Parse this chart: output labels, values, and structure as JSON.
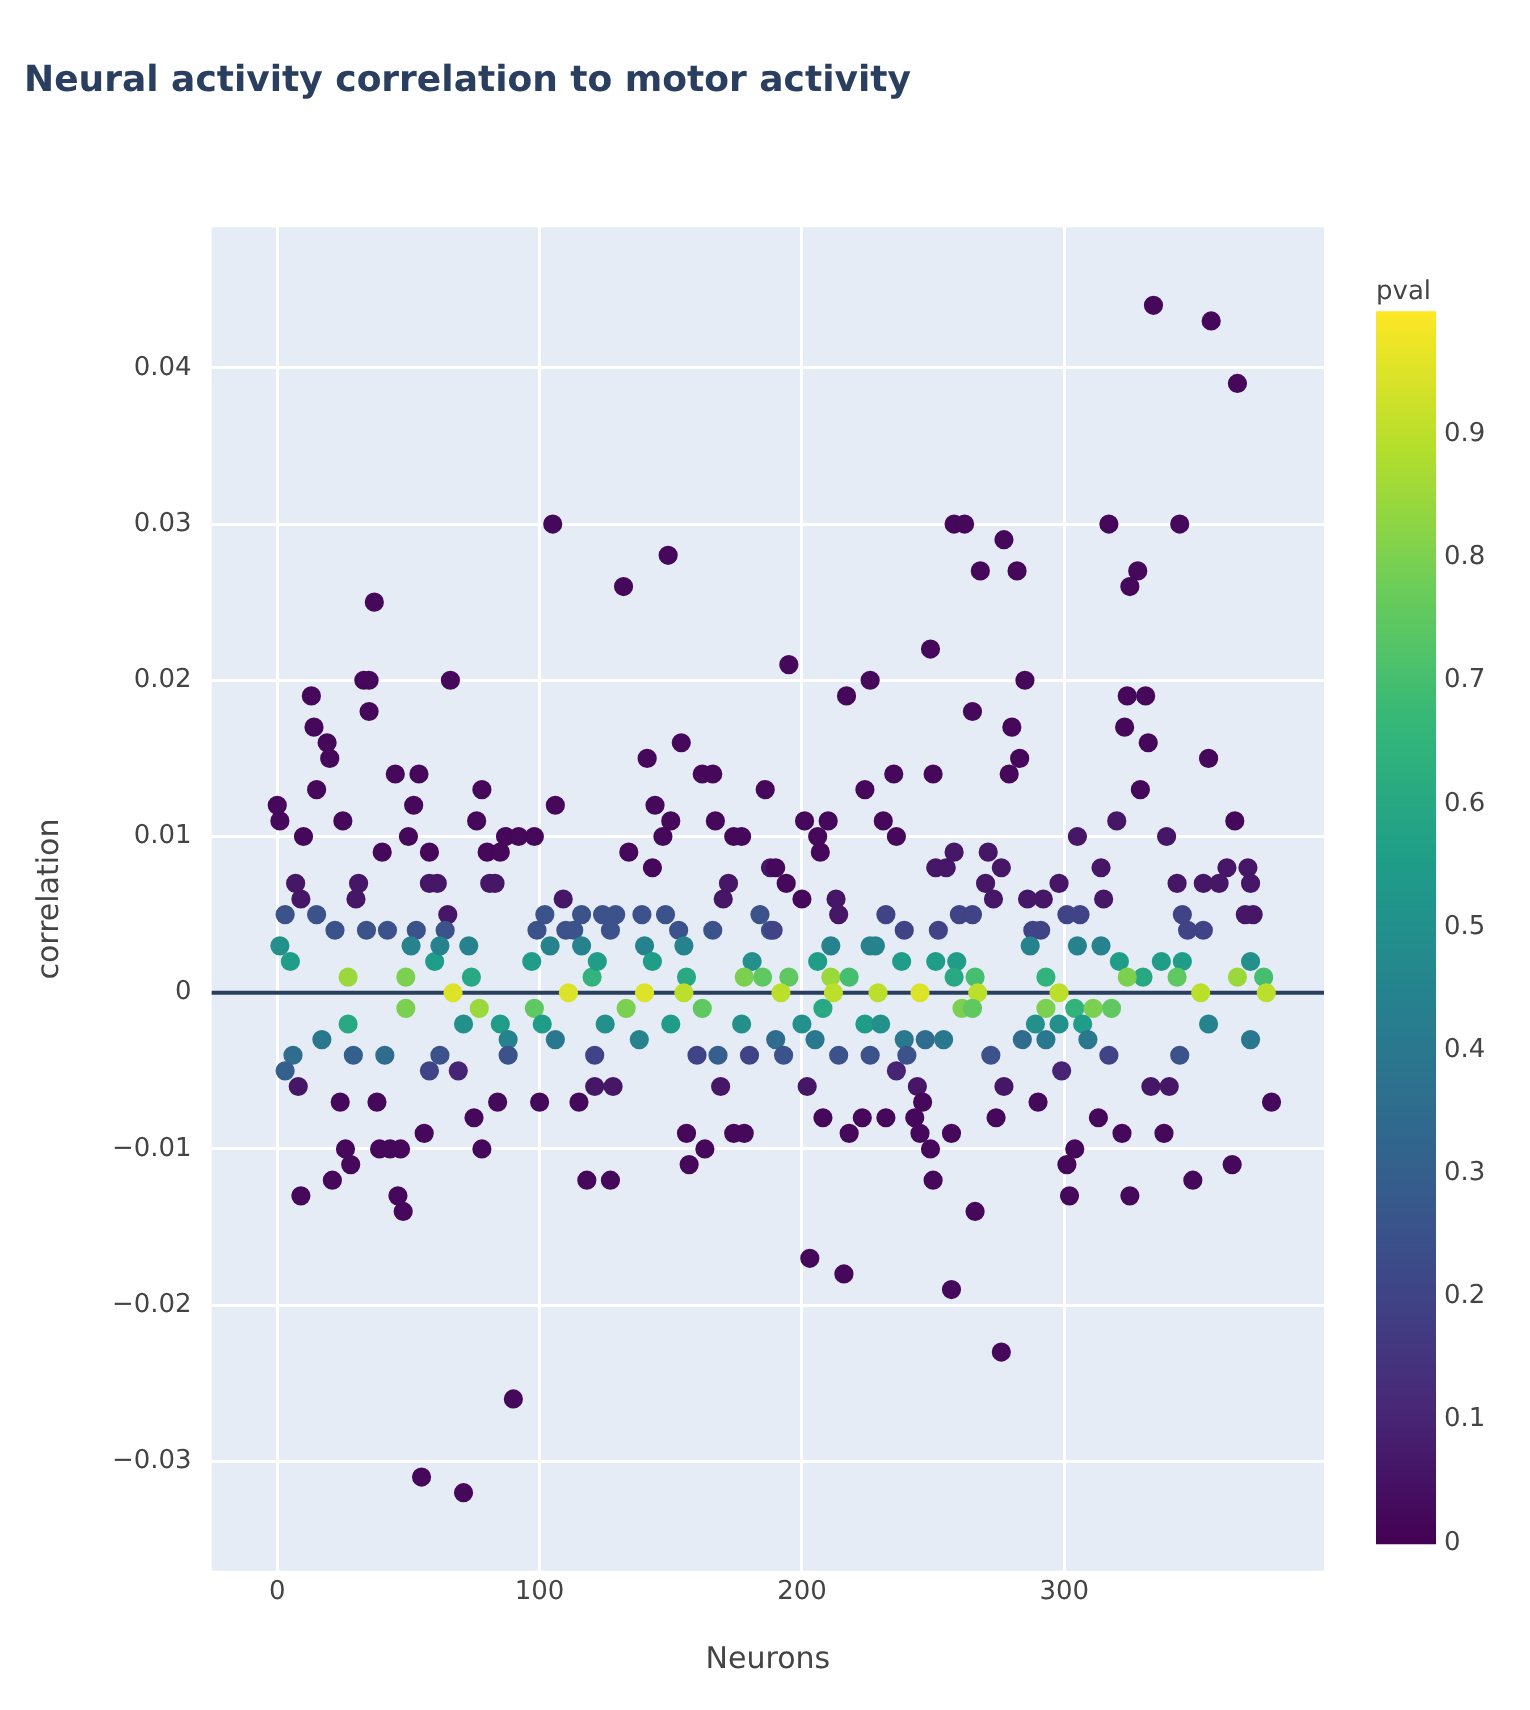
{
  "chart_data": {
    "type": "scatter",
    "title": "Neural activity correlation to motor activity",
    "xlabel": "Neurons",
    "ylabel": "correlation",
    "clabel": "pval",
    "x": [
      0,
      1,
      13,
      14,
      19,
      20,
      15,
      10,
      25,
      37,
      33,
      35,
      35,
      45,
      54,
      52,
      50,
      40,
      58,
      66,
      78,
      76,
      80,
      85,
      87,
      92,
      98,
      105,
      106,
      132,
      149,
      154,
      141,
      162,
      166,
      144,
      150,
      134,
      147,
      143,
      167,
      174,
      177,
      186,
      7,
      9,
      31,
      30,
      58,
      61,
      81,
      83,
      65,
      109,
      172,
      170,
      188,
      3,
      15,
      22,
      34,
      42,
      53,
      64,
      102,
      99,
      110,
      113,
      116,
      124,
      129,
      127,
      139,
      148,
      153,
      166,
      184,
      188,
      1,
      5,
      51,
      60,
      62,
      73,
      74,
      97,
      104,
      116,
      120,
      122,
      140,
      143,
      155,
      156,
      181,
      27,
      49,
      178,
      185,
      334,
      356,
      366,
      195,
      217,
      226,
      249,
      258,
      262,
      277,
      268,
      282,
      317,
      344,
      328,
      325,
      265,
      285,
      280,
      283,
      279,
      324,
      331,
      323,
      332,
      355,
      329,
      365,
      235,
      250,
      224,
      201,
      210,
      231,
      206,
      236,
      207,
      190,
      194,
      200,
      213,
      214,
      258,
      271,
      251,
      255,
      276,
      270,
      273,
      286,
      292,
      298,
      305,
      314,
      315,
      320,
      339,
      343,
      353,
      359,
      362,
      370,
      371,
      369,
      372,
      189,
      232,
      239,
      252,
      260,
      265,
      288,
      291,
      301,
      306,
      345,
      347,
      353,
      211,
      226,
      228,
      206,
      238,
      251,
      259,
      258,
      287,
      305,
      314,
      321,
      330,
      337,
      345,
      371,
      195,
      211,
      218,
      266,
      293,
      324,
      343,
      366,
      376,
      67,
      111,
      140,
      155,
      192,
      212,
      229,
      245,
      267,
      298,
      352,
      377,
      49,
      77,
      98,
      133,
      162,
      27,
      71,
      85,
      101,
      125,
      150,
      177,
      17,
      88,
      106,
      138,
      6,
      29,
      41,
      62,
      88,
      121,
      160,
      168,
      180,
      3,
      58,
      69,
      8,
      121,
      128,
      169,
      24,
      38,
      84,
      100,
      115,
      75,
      56,
      156,
      174,
      178,
      26,
      39,
      43,
      47,
      78,
      163,
      28,
      157,
      21,
      118,
      127,
      9,
      46,
      48,
      90,
      55,
      71,
      208,
      261,
      265,
      293,
      304,
      311,
      318,
      200,
      224,
      230,
      289,
      298,
      307,
      355,
      190,
      205,
      239,
      247,
      254,
      284,
      293,
      309,
      371,
      193,
      214,
      226,
      240,
      272,
      317,
      344,
      236,
      299,
      202,
      244,
      277,
      333,
      340,
      246,
      290,
      379,
      208,
      223,
      232,
      243,
      274,
      313,
      218,
      245,
      257,
      322,
      338,
      249,
      304,
      301,
      364,
      349,
      250,
      302,
      325,
      266,
      203,
      216,
      257,
      276
    ],
    "values": [
      0.012,
      0.011,
      0.019,
      0.017,
      0.016,
      0.015,
      0.013,
      0.01,
      0.011,
      0.025,
      0.02,
      0.02,
      0.018,
      0.014,
      0.014,
      0.012,
      0.01,
      0.009,
      0.009,
      0.02,
      0.013,
      0.011,
      0.009,
      0.009,
      0.01,
      0.01,
      0.01,
      0.03,
      0.012,
      0.026,
      0.028,
      0.016,
      0.015,
      0.014,
      0.014,
      0.012,
      0.011,
      0.009,
      0.01,
      0.008,
      0.011,
      0.01,
      0.01,
      0.013,
      0.007,
      0.006,
      0.007,
      0.006,
      0.007,
      0.007,
      0.007,
      0.007,
      0.005,
      0.006,
      0.007,
      0.006,
      0.008,
      0.005,
      0.005,
      0.004,
      0.004,
      0.004,
      0.004,
      0.004,
      0.005,
      0.004,
      0.004,
      0.004,
      0.005,
      0.005,
      0.005,
      0.004,
      0.005,
      0.005,
      0.004,
      0.004,
      0.005,
      0.004,
      0.003,
      0.002,
      0.003,
      0.002,
      0.003,
      0.003,
      0.001,
      0.002,
      0.003,
      0.003,
      0.001,
      0.002,
      0.003,
      0.002,
      0.003,
      0.001,
      0.002,
      0.001,
      0.001,
      0.001,
      0.001,
      0.044,
      0.043,
      0.039,
      0.021,
      0.019,
      0.02,
      0.022,
      0.03,
      0.03,
      0.029,
      0.027,
      0.027,
      0.03,
      0.03,
      0.027,
      0.026,
      0.018,
      0.02,
      0.017,
      0.015,
      0.014,
      0.019,
      0.019,
      0.017,
      0.016,
      0.015,
      0.013,
      0.011,
      0.014,
      0.014,
      0.013,
      0.011,
      0.011,
      0.011,
      0.01,
      0.01,
      0.009,
      0.008,
      0.007,
      0.006,
      0.006,
      0.005,
      0.009,
      0.009,
      0.008,
      0.008,
      0.008,
      0.007,
      0.006,
      0.006,
      0.006,
      0.007,
      0.01,
      0.008,
      0.006,
      0.011,
      0.01,
      0.007,
      0.007,
      0.007,
      0.008,
      0.008,
      0.007,
      0.005,
      0.005,
      0.004,
      0.005,
      0.004,
      0.004,
      0.005,
      0.005,
      0.004,
      0.004,
      0.005,
      0.005,
      0.005,
      0.004,
      0.004,
      0.003,
      0.003,
      0.003,
      0.002,
      0.002,
      0.002,
      0.002,
      0.001,
      0.003,
      0.003,
      0.003,
      0.002,
      0.001,
      0.002,
      0.002,
      0.002,
      0.001,
      0.001,
      0.001,
      0.001,
      0.001,
      0.001,
      0.001,
      0.001,
      0.001,
      0,
      0,
      0,
      0,
      0,
      0,
      0,
      0,
      0,
      0,
      0,
      0,
      -0.001,
      -0.001,
      -0.001,
      -0.001,
      -0.001,
      -0.002,
      -0.002,
      -0.002,
      -0.002,
      -0.002,
      -0.002,
      -0.002,
      -0.003,
      -0.003,
      -0.003,
      -0.003,
      -0.004,
      -0.004,
      -0.004,
      -0.004,
      -0.004,
      -0.004,
      -0.004,
      -0.004,
      -0.004,
      -0.005,
      -0.005,
      -0.005,
      -0.006,
      -0.006,
      -0.006,
      -0.006,
      -0.007,
      -0.007,
      -0.007,
      -0.007,
      -0.007,
      -0.008,
      -0.009,
      -0.009,
      -0.009,
      -0.009,
      -0.01,
      -0.01,
      -0.01,
      -0.01,
      -0.01,
      -0.01,
      -0.011,
      -0.011,
      -0.012,
      -0.012,
      -0.012,
      -0.013,
      -0.013,
      -0.014,
      -0.026,
      -0.031,
      -0.032,
      -0.001,
      -0.001,
      -0.001,
      -0.001,
      -0.001,
      -0.001,
      -0.001,
      -0.002,
      -0.002,
      -0.002,
      -0.002,
      -0.002,
      -0.002,
      -0.002,
      -0.003,
      -0.003,
      -0.003,
      -0.003,
      -0.003,
      -0.003,
      -0.003,
      -0.003,
      -0.003,
      -0.004,
      -0.004,
      -0.004,
      -0.004,
      -0.004,
      -0.004,
      -0.004,
      -0.005,
      -0.005,
      -0.006,
      -0.006,
      -0.006,
      -0.006,
      -0.006,
      -0.007,
      -0.007,
      -0.007,
      -0.008,
      -0.008,
      -0.008,
      -0.008,
      -0.008,
      -0.008,
      -0.009,
      -0.009,
      -0.009,
      -0.009,
      -0.009,
      -0.01,
      -0.01,
      -0.011,
      -0.011,
      -0.012,
      -0.012,
      -0.013,
      -0.013,
      -0.014,
      -0.017,
      -0.018,
      -0.019,
      -0.023
    ],
    "cvalues": [
      0.02,
      0.02,
      0.02,
      0.02,
      0.02,
      0.02,
      0.02,
      0.02,
      0.02,
      0.02,
      0.02,
      0.02,
      0.02,
      0.02,
      0.02,
      0.02,
      0.02,
      0.02,
      0.02,
      0.02,
      0.02,
      0.02,
      0.02,
      0.02,
      0.02,
      0.02,
      0.02,
      0.02,
      0.02,
      0.02,
      0.02,
      0.02,
      0.02,
      0.02,
      0.02,
      0.02,
      0.02,
      0.02,
      0.02,
      0.02,
      0.02,
      0.02,
      0.02,
      0.02,
      0.06,
      0.06,
      0.06,
      0.06,
      0.06,
      0.06,
      0.06,
      0.06,
      0.06,
      0.06,
      0.06,
      0.06,
      0.06,
      0.25,
      0.25,
      0.25,
      0.25,
      0.25,
      0.25,
      0.25,
      0.25,
      0.25,
      0.25,
      0.25,
      0.25,
      0.25,
      0.25,
      0.25,
      0.25,
      0.25,
      0.25,
      0.25,
      0.25,
      0.25,
      0.5,
      0.55,
      0.45,
      0.55,
      0.45,
      0.45,
      0.6,
      0.55,
      0.45,
      0.45,
      0.65,
      0.55,
      0.45,
      0.55,
      0.45,
      0.6,
      0.5,
      0.85,
      0.8,
      0.8,
      0.75,
      0.02,
      0.02,
      0.02,
      0.02,
      0.02,
      0.02,
      0.02,
      0.02,
      0.02,
      0.02,
      0.02,
      0.02,
      0.02,
      0.02,
      0.02,
      0.02,
      0.02,
      0.02,
      0.02,
      0.02,
      0.02,
      0.02,
      0.02,
      0.02,
      0.02,
      0.02,
      0.02,
      0.02,
      0.02,
      0.02,
      0.02,
      0.02,
      0.02,
      0.02,
      0.02,
      0.02,
      0.02,
      0.02,
      0.02,
      0.02,
      0.06,
      0.06,
      0.06,
      0.06,
      0.06,
      0.06,
      0.06,
      0.06,
      0.06,
      0.06,
      0.06,
      0.06,
      0.06,
      0.06,
      0.06,
      0.06,
      0.06,
      0.06,
      0.06,
      0.06,
      0.06,
      0.06,
      0.06,
      0.06,
      0.06,
      0.2,
      0.2,
      0.2,
      0.2,
      0.2,
      0.2,
      0.2,
      0.2,
      0.2,
      0.2,
      0.2,
      0.2,
      0.2,
      0.45,
      0.45,
      0.45,
      0.55,
      0.55,
      0.55,
      0.55,
      0.6,
      0.45,
      0.45,
      0.45,
      0.55,
      0.6,
      0.55,
      0.55,
      0.5,
      0.75,
      0.85,
      0.7,
      0.7,
      0.65,
      0.8,
      0.75,
      0.85,
      0.7,
      0.95,
      0.95,
      0.95,
      0.9,
      0.9,
      0.9,
      0.9,
      0.95,
      0.9,
      0.9,
      0.9,
      0.9,
      0.8,
      0.85,
      0.75,
      0.8,
      0.75,
      0.6,
      0.5,
      0.55,
      0.55,
      0.5,
      0.55,
      0.5,
      0.4,
      0.45,
      0.4,
      0.45,
      0.35,
      0.3,
      0.35,
      0.25,
      0.25,
      0.2,
      0.2,
      0.3,
      0.2,
      0.3,
      0.2,
      0.1,
      0.06,
      0.06,
      0.06,
      0.06,
      0.02,
      0.02,
      0.02,
      0.02,
      0.02,
      0.02,
      0.02,
      0.02,
      0.02,
      0.02,
      0.02,
      0.02,
      0.02,
      0.02,
      0.02,
      0.02,
      0.02,
      0.02,
      0.02,
      0.02,
      0.02,
      0.02,
      0.02,
      0.02,
      0.02,
      0.02,
      0.02,
      0.6,
      0.8,
      0.75,
      0.8,
      0.65,
      0.8,
      0.75,
      0.5,
      0.55,
      0.5,
      0.5,
      0.5,
      0.55,
      0.45,
      0.35,
      0.4,
      0.4,
      0.35,
      0.4,
      0.35,
      0.4,
      0.4,
      0.4,
      0.25,
      0.25,
      0.25,
      0.25,
      0.25,
      0.2,
      0.25,
      0.1,
      0.1,
      0.06,
      0.06,
      0.06,
      0.06,
      0.06,
      0.02,
      0.02,
      0.02,
      0.02,
      0.02,
      0.02,
      0.02,
      0.02,
      0.02,
      0.02,
      0.02,
      0.02,
      0.02,
      0.02,
      0.02,
      0.02,
      0.02,
      0.02,
      0.02,
      0.02,
      0.02,
      0.02,
      0.02,
      0.02,
      0.02,
      0.02,
      0.02
    ],
    "xlim": [
      -25,
      399
    ],
    "ylim": [
      -0.037,
      0.049
    ],
    "xticks": [
      0,
      100,
      200,
      300
    ],
    "yticks": [
      {
        "value": -0.03,
        "label": "−0.03"
      },
      {
        "value": -0.02,
        "label": "−0.02"
      },
      {
        "value": -0.01,
        "label": "−0.01"
      },
      0,
      0.01,
      0.02,
      0.03,
      0.04
    ],
    "clim": [
      0,
      1
    ],
    "cticks": [
      0,
      0.1,
      0.2,
      0.3,
      0.4,
      0.5,
      0.6,
      0.7,
      0.8,
      0.9
    ],
    "ref_lines": [
      {
        "axis": "y",
        "value": 0,
        "color": "#2a3f5f"
      }
    ],
    "grid": true,
    "marker": "circle",
    "legend": false
  }
}
